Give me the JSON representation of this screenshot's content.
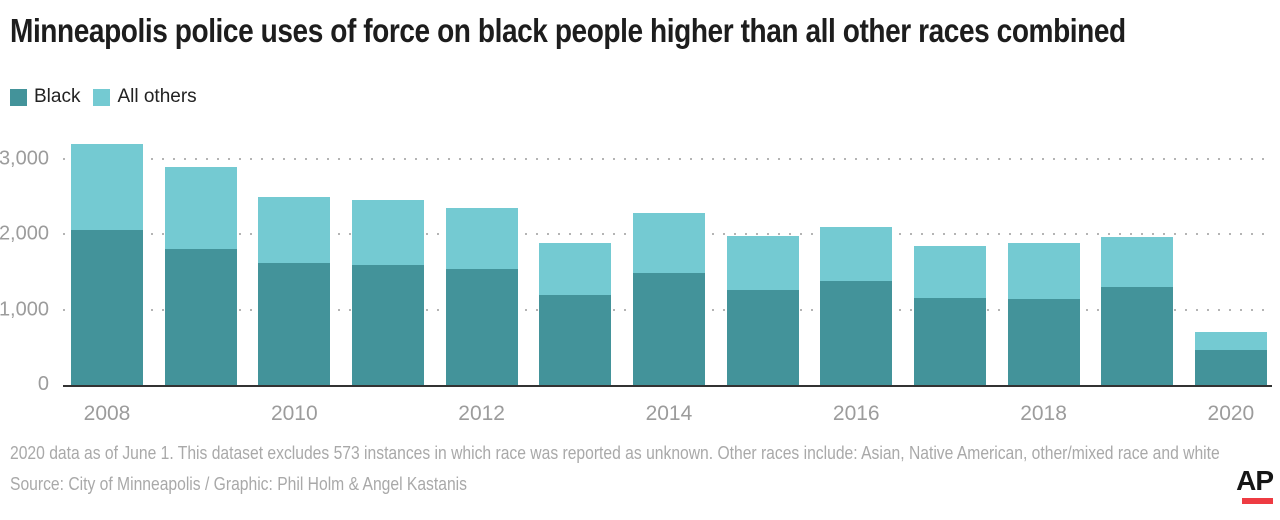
{
  "title": "Minneapolis police uses of force on black people higher than all other races combined",
  "legend": [
    {
      "label": "Black",
      "color": "#43939a"
    },
    {
      "label": "All others",
      "color": "#74cad2"
    }
  ],
  "chart_data": {
    "type": "bar",
    "stacked": true,
    "categories": [
      2008,
      2009,
      2010,
      2011,
      2012,
      2013,
      2014,
      2015,
      2016,
      2017,
      2018,
      2019,
      2020
    ],
    "series": [
      {
        "name": "Black",
        "color": "#43939a",
        "values": [
          2050,
          1800,
          1620,
          1590,
          1540,
          1200,
          1480,
          1260,
          1380,
          1160,
          1140,
          1300,
          470
        ]
      },
      {
        "name": "All others",
        "color": "#74cad2",
        "values": [
          1150,
          1090,
          870,
          870,
          810,
          680,
          800,
          720,
          720,
          690,
          740,
          660,
          230
        ]
      }
    ],
    "title": "Minneapolis police uses of force on black people higher than all other races combined",
    "xlabel": "",
    "ylabel": "",
    "ylim": [
      0,
      3250
    ],
    "yticks": [
      0,
      1000,
      2000,
      3000
    ],
    "ytick_labels": [
      "0",
      "1,000",
      "2,000",
      "3,000"
    ],
    "xtick_labels_shown": [
      "2008",
      "2010",
      "2012",
      "2014",
      "2016",
      "2018",
      "2020"
    ],
    "grid": "dotted-horizontal",
    "gridline_color": "#b4b4b4",
    "baseline_color": "#333333",
    "legend_position": "top-left"
  },
  "footnotes": [
    "2020 data as of June 1. This dataset excludes 573 instances in which race was reported as unknown. Other races include: Asian, Native American, other/mixed race and white",
    "Source: City of Minneapolis / Graphic: Phil Holm & Angel Kastanis"
  ],
  "logo": {
    "text": "AP",
    "underline_color": "#ee3b42"
  }
}
